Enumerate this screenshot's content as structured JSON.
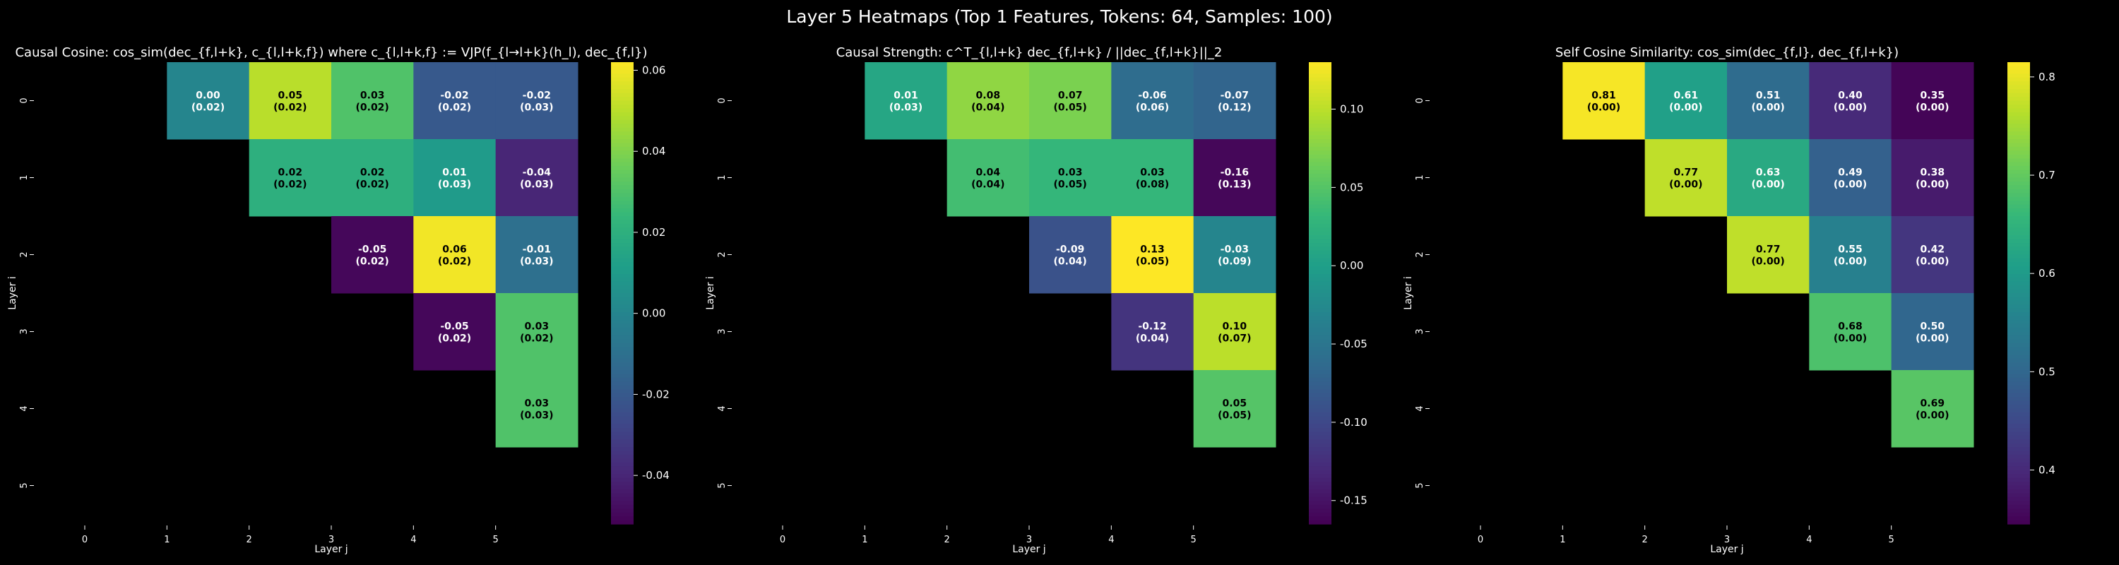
{
  "figure_title": "Layer 5 Heatmaps (Top 1 Features, Tokens: 64, Samples: 100)",
  "chart_data": [
    {
      "type": "heatmap",
      "title": "Causal Cosine: cos_sim(dec_{f,l+k}, c_{l,l+k,f}) where c_{l,l+k,f} := VJP(f_{l→l+k}(h_l), dec_{f,l})",
      "xlabel": "Layer j",
      "ylabel": "Layer i",
      "x_ticks": [
        "0",
        "1",
        "2",
        "3",
        "4",
        "5"
      ],
      "y_ticks": [
        "0",
        "1",
        "2",
        "3",
        "4",
        "5"
      ],
      "vmin": -0.052,
      "vmax": 0.062,
      "colorbar_ticks": [
        "-0.04",
        "-0.02",
        "0.00",
        "0.02",
        "0.04",
        "0.06"
      ],
      "colorbar_values": [
        -0.04,
        -0.02,
        0.0,
        0.02,
        0.04,
        0.06
      ],
      "cells": [
        {
          "i": 0,
          "j": 1,
          "value": 0.0,
          "label": "0.00",
          "sd": "(0.02)"
        },
        {
          "i": 0,
          "j": 2,
          "value": 0.05,
          "label": "0.05",
          "sd": "(0.02)"
        },
        {
          "i": 0,
          "j": 3,
          "value": 0.03,
          "label": "0.03",
          "sd": "(0.02)"
        },
        {
          "i": 0,
          "j": 4,
          "value": -0.02,
          "label": "-0.02",
          "sd": "(0.02)"
        },
        {
          "i": 0,
          "j": 5,
          "value": -0.02,
          "label": "-0.02",
          "sd": "(0.03)"
        },
        {
          "i": 1,
          "j": 2,
          "value": 0.02,
          "label": "0.02",
          "sd": "(0.02)"
        },
        {
          "i": 1,
          "j": 3,
          "value": 0.02,
          "label": "0.02",
          "sd": "(0.02)"
        },
        {
          "i": 1,
          "j": 4,
          "value": 0.01,
          "label": "0.01",
          "sd": "(0.03)"
        },
        {
          "i": 1,
          "j": 5,
          "value": -0.04,
          "label": "-0.04",
          "sd": "(0.03)"
        },
        {
          "i": 2,
          "j": 3,
          "value": -0.05,
          "label": "-0.05",
          "sd": "(0.02)"
        },
        {
          "i": 2,
          "j": 4,
          "value": 0.06,
          "label": "0.06",
          "sd": "(0.02)"
        },
        {
          "i": 2,
          "j": 5,
          "value": -0.01,
          "label": "-0.01",
          "sd": "(0.03)"
        },
        {
          "i": 3,
          "j": 4,
          "value": -0.05,
          "label": "-0.05",
          "sd": "(0.02)"
        },
        {
          "i": 3,
          "j": 5,
          "value": 0.03,
          "label": "0.03",
          "sd": "(0.02)"
        },
        {
          "i": 4,
          "j": 5,
          "value": 0.03,
          "label": "0.03",
          "sd": "(0.03)"
        }
      ]
    },
    {
      "type": "heatmap",
      "title": "Causal Strength: c^T_{l,l+k} dec_{f,l+k} / ||dec_{f,l+k}||_2",
      "xlabel": "Layer j",
      "ylabel": "Layer i",
      "x_ticks": [
        "0",
        "1",
        "2",
        "3",
        "4",
        "5"
      ],
      "y_ticks": [
        "0",
        "1",
        "2",
        "3",
        "4",
        "5"
      ],
      "vmin": -0.165,
      "vmax": 0.13,
      "colorbar_ticks": [
        "-0.15",
        "-0.10",
        "-0.05",
        "0.00",
        "0.05",
        "0.10"
      ],
      "colorbar_values": [
        -0.15,
        -0.1,
        -0.05,
        0.0,
        0.05,
        0.1
      ],
      "cells": [
        {
          "i": 0,
          "j": 1,
          "value": 0.01,
          "label": "0.01",
          "sd": "(0.03)"
        },
        {
          "i": 0,
          "j": 2,
          "value": 0.08,
          "label": "0.08",
          "sd": "(0.04)"
        },
        {
          "i": 0,
          "j": 3,
          "value": 0.07,
          "label": "0.07",
          "sd": "(0.05)"
        },
        {
          "i": 0,
          "j": 4,
          "value": -0.06,
          "label": "-0.06",
          "sd": "(0.06)"
        },
        {
          "i": 0,
          "j": 5,
          "value": -0.07,
          "label": "-0.07",
          "sd": "(0.12)"
        },
        {
          "i": 1,
          "j": 2,
          "value": 0.04,
          "label": "0.04",
          "sd": "(0.04)"
        },
        {
          "i": 1,
          "j": 3,
          "value": 0.03,
          "label": "0.03",
          "sd": "(0.05)"
        },
        {
          "i": 1,
          "j": 4,
          "value": 0.03,
          "label": "0.03",
          "sd": "(0.08)"
        },
        {
          "i": 1,
          "j": 5,
          "value": -0.16,
          "label": "-0.16",
          "sd": "(0.13)"
        },
        {
          "i": 2,
          "j": 3,
          "value": -0.09,
          "label": "-0.09",
          "sd": "(0.04)"
        },
        {
          "i": 2,
          "j": 4,
          "value": 0.13,
          "label": "0.13",
          "sd": "(0.05)"
        },
        {
          "i": 2,
          "j": 5,
          "value": -0.03,
          "label": "-0.03",
          "sd": "(0.09)"
        },
        {
          "i": 3,
          "j": 4,
          "value": -0.12,
          "label": "-0.12",
          "sd": "(0.04)"
        },
        {
          "i": 3,
          "j": 5,
          "value": 0.1,
          "label": "0.10",
          "sd": "(0.07)"
        },
        {
          "i": 4,
          "j": 5,
          "value": 0.05,
          "label": "0.05",
          "sd": "(0.05)"
        }
      ]
    },
    {
      "type": "heatmap",
      "title": "Self Cosine Similarity: cos_sim(dec_{f,l}, dec_{f,l+k})",
      "xlabel": "Layer j",
      "ylabel": "Layer i",
      "x_ticks": [
        "0",
        "1",
        "2",
        "3",
        "4",
        "5"
      ],
      "y_ticks": [
        "0",
        "1",
        "2",
        "3",
        "4",
        "5"
      ],
      "vmin": 0.345,
      "vmax": 0.815,
      "colorbar_ticks": [
        "0.4",
        "0.5",
        "0.6",
        "0.7",
        "0.8"
      ],
      "colorbar_values": [
        0.4,
        0.5,
        0.6,
        0.7,
        0.8
      ],
      "cells": [
        {
          "i": 0,
          "j": 1,
          "value": 0.81,
          "label": "0.81",
          "sd": "(0.00)"
        },
        {
          "i": 0,
          "j": 2,
          "value": 0.61,
          "label": "0.61",
          "sd": "(0.00)"
        },
        {
          "i": 0,
          "j": 3,
          "value": 0.51,
          "label": "0.51",
          "sd": "(0.00)"
        },
        {
          "i": 0,
          "j": 4,
          "value": 0.4,
          "label": "0.40",
          "sd": "(0.00)"
        },
        {
          "i": 0,
          "j": 5,
          "value": 0.35,
          "label": "0.35",
          "sd": "(0.00)"
        },
        {
          "i": 1,
          "j": 2,
          "value": 0.77,
          "label": "0.77",
          "sd": "(0.00)"
        },
        {
          "i": 1,
          "j": 3,
          "value": 0.63,
          "label": "0.63",
          "sd": "(0.00)"
        },
        {
          "i": 1,
          "j": 4,
          "value": 0.49,
          "label": "0.49",
          "sd": "(0.00)"
        },
        {
          "i": 1,
          "j": 5,
          "value": 0.38,
          "label": "0.38",
          "sd": "(0.00)"
        },
        {
          "i": 2,
          "j": 3,
          "value": 0.77,
          "label": "0.77",
          "sd": "(0.00)"
        },
        {
          "i": 2,
          "j": 4,
          "value": 0.55,
          "label": "0.55",
          "sd": "(0.00)"
        },
        {
          "i": 2,
          "j": 5,
          "value": 0.42,
          "label": "0.42",
          "sd": "(0.00)"
        },
        {
          "i": 3,
          "j": 4,
          "value": 0.68,
          "label": "0.68",
          "sd": "(0.00)"
        },
        {
          "i": 3,
          "j": 5,
          "value": 0.5,
          "label": "0.50",
          "sd": "(0.00)"
        },
        {
          "i": 4,
          "j": 5,
          "value": 0.69,
          "label": "0.69",
          "sd": "(0.00)"
        }
      ]
    }
  ],
  "colormap": [
    "#440154",
    "#482878",
    "#3e4989",
    "#31688e",
    "#26828e",
    "#1f9e89",
    "#35b779",
    "#6ece58",
    "#b5de2b",
    "#fde725"
  ]
}
